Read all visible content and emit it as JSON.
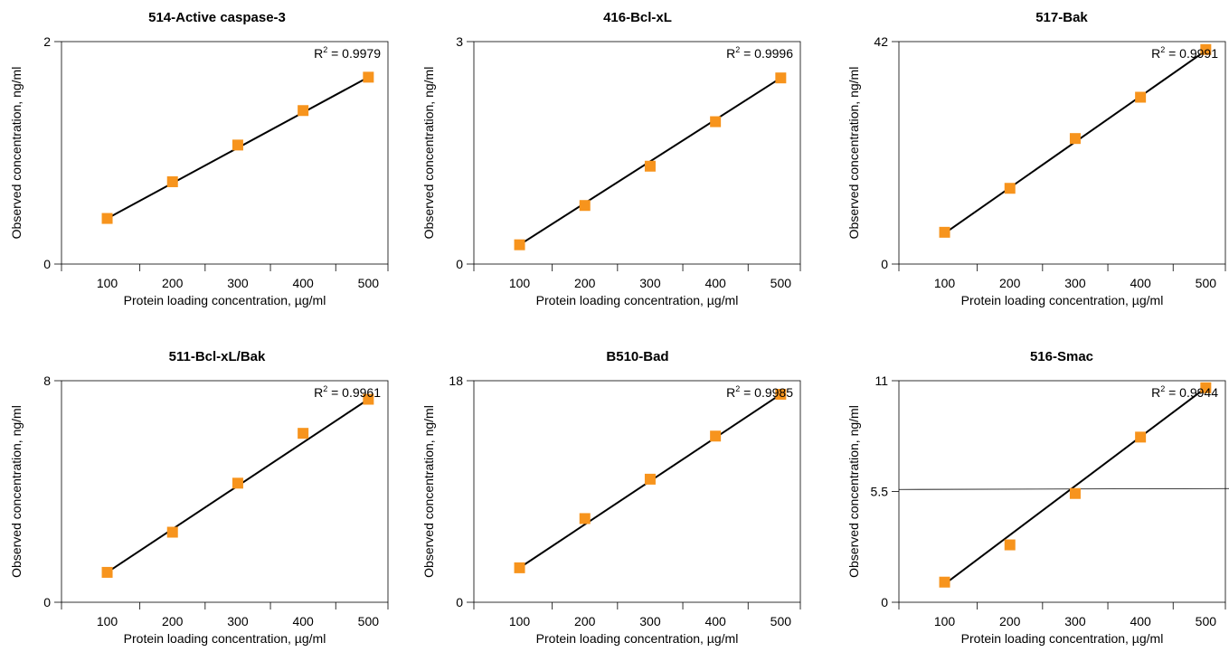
{
  "chart_data": [
    {
      "type": "scatter",
      "title": "514-Active caspase-3",
      "xlabel": "Protein loading concentration, µg/ml",
      "ylabel": "Observed concentration, ng/ml",
      "x_ticks": [
        100,
        200,
        300,
        400,
        500
      ],
      "y_tick_labels": [
        "0",
        "2"
      ],
      "xlim": [
        30,
        530
      ],
      "ylim": [
        0,
        2
      ],
      "r2_label": "R",
      "r2_sup": "2",
      "r2_value": " = 0.9979",
      "points": [
        [
          100,
          0.41
        ],
        [
          200,
          0.74
        ],
        [
          300,
          1.07
        ],
        [
          400,
          1.38
        ],
        [
          500,
          1.68
        ]
      ],
      "fit_line": [
        [
          100,
          0.41
        ],
        [
          500,
          1.68
        ]
      ],
      "marker_color": "#f7941d",
      "line_color": "#000000"
    },
    {
      "type": "scatter",
      "title": "416-Bcl-xL",
      "xlabel": "Protein loading concentration, µg/ml",
      "ylabel": "Observed concentration, ng/ml",
      "x_ticks": [
        100,
        200,
        300,
        400,
        500
      ],
      "y_tick_labels": [
        "0",
        "3"
      ],
      "xlim": [
        30,
        530
      ],
      "ylim": [
        0,
        3
      ],
      "r2_label": "R",
      "r2_sup": "2",
      "r2_value": " = 0.9996",
      "points": [
        [
          100,
          0.26
        ],
        [
          200,
          0.79
        ],
        [
          300,
          1.32
        ],
        [
          400,
          1.92
        ],
        [
          500,
          2.51
        ]
      ],
      "fit_line": [
        [
          100,
          0.26
        ],
        [
          500,
          2.51
        ]
      ],
      "marker_color": "#f7941d",
      "line_color": "#000000"
    },
    {
      "type": "scatter",
      "title": "517-Bak",
      "xlabel": "Protein loading concentration, µg/ml",
      "ylabel": "Observed concentration, ng/ml",
      "x_ticks": [
        100,
        200,
        300,
        400,
        500
      ],
      "y_tick_labels": [
        "0",
        "42"
      ],
      "xlim": [
        30,
        530
      ],
      "ylim": [
        0,
        42
      ],
      "r2_label": "R",
      "r2_sup": "2",
      "r2_value": " = 0.9991",
      "points": [
        [
          100,
          6.0
        ],
        [
          200,
          14.3
        ],
        [
          300,
          23.7
        ],
        [
          400,
          31.5
        ],
        [
          500,
          40.5
        ]
      ],
      "fit_line": [
        [
          100,
          5.8
        ],
        [
          500,
          40.3
        ]
      ],
      "marker_color": "#f7941d",
      "line_color": "#000000"
    },
    {
      "type": "scatter",
      "title": "511-Bcl-xL/Bak",
      "xlabel": "Protein loading concentration, µg/ml",
      "ylabel": "Observed concentration, ng/ml",
      "x_ticks": [
        100,
        200,
        300,
        400,
        500
      ],
      "y_tick_labels": [
        "0",
        "8"
      ],
      "xlim": [
        30,
        530
      ],
      "ylim": [
        0,
        8
      ],
      "r2_label": "R",
      "r2_sup": "2",
      "r2_value": " = 0.9961",
      "points": [
        [
          100,
          1.08
        ],
        [
          200,
          2.53
        ],
        [
          300,
          4.3
        ],
        [
          400,
          6.1
        ],
        [
          500,
          7.33
        ]
      ],
      "fit_line": [
        [
          100,
          1.08
        ],
        [
          500,
          7.33
        ]
      ],
      "marker_color": "#f7941d",
      "line_color": "#000000"
    },
    {
      "type": "scatter",
      "title": "B510-Bad",
      "xlabel": "Protein loading concentration, µg/ml",
      "ylabel": "Observed concentration, ng/ml",
      "x_ticks": [
        100,
        200,
        300,
        400,
        500
      ],
      "y_tick_labels": [
        "0",
        "18"
      ],
      "xlim": [
        30,
        530
      ],
      "ylim": [
        0,
        18
      ],
      "r2_label": "R",
      "r2_sup": "2",
      "r2_value": " = 0.9985",
      "points": [
        [
          100,
          2.8
        ],
        [
          200,
          6.8
        ],
        [
          300,
          10.0
        ],
        [
          400,
          13.5
        ],
        [
          500,
          16.9
        ]
      ],
      "fit_line": [
        [
          100,
          2.8
        ],
        [
          500,
          16.9
        ]
      ],
      "marker_color": "#f7941d",
      "line_color": "#000000"
    },
    {
      "type": "scatter",
      "title": "516-Smac",
      "xlabel": "Protein loading concentration, µg/ml",
      "ylabel": "Observed concentration, ng/ml",
      "x_ticks": [
        100,
        200,
        300,
        400,
        500
      ],
      "y_tick_labels": [
        "0",
        "5.5",
        "11"
      ],
      "xlim": [
        30,
        530
      ],
      "ylim": [
        0,
        11
      ],
      "r2_label": "R",
      "r2_sup": "2",
      "r2_value": " = 0.9944",
      "points": [
        [
          100,
          1.0
        ],
        [
          200,
          2.85
        ],
        [
          300,
          5.4
        ],
        [
          400,
          8.2
        ],
        [
          500,
          10.65
        ]
      ],
      "fit_line": [
        [
          100,
          0.9
        ],
        [
          500,
          10.65
        ]
      ],
      "hline": 5.6,
      "marker_color": "#f7941d",
      "line_color": "#000000"
    }
  ]
}
